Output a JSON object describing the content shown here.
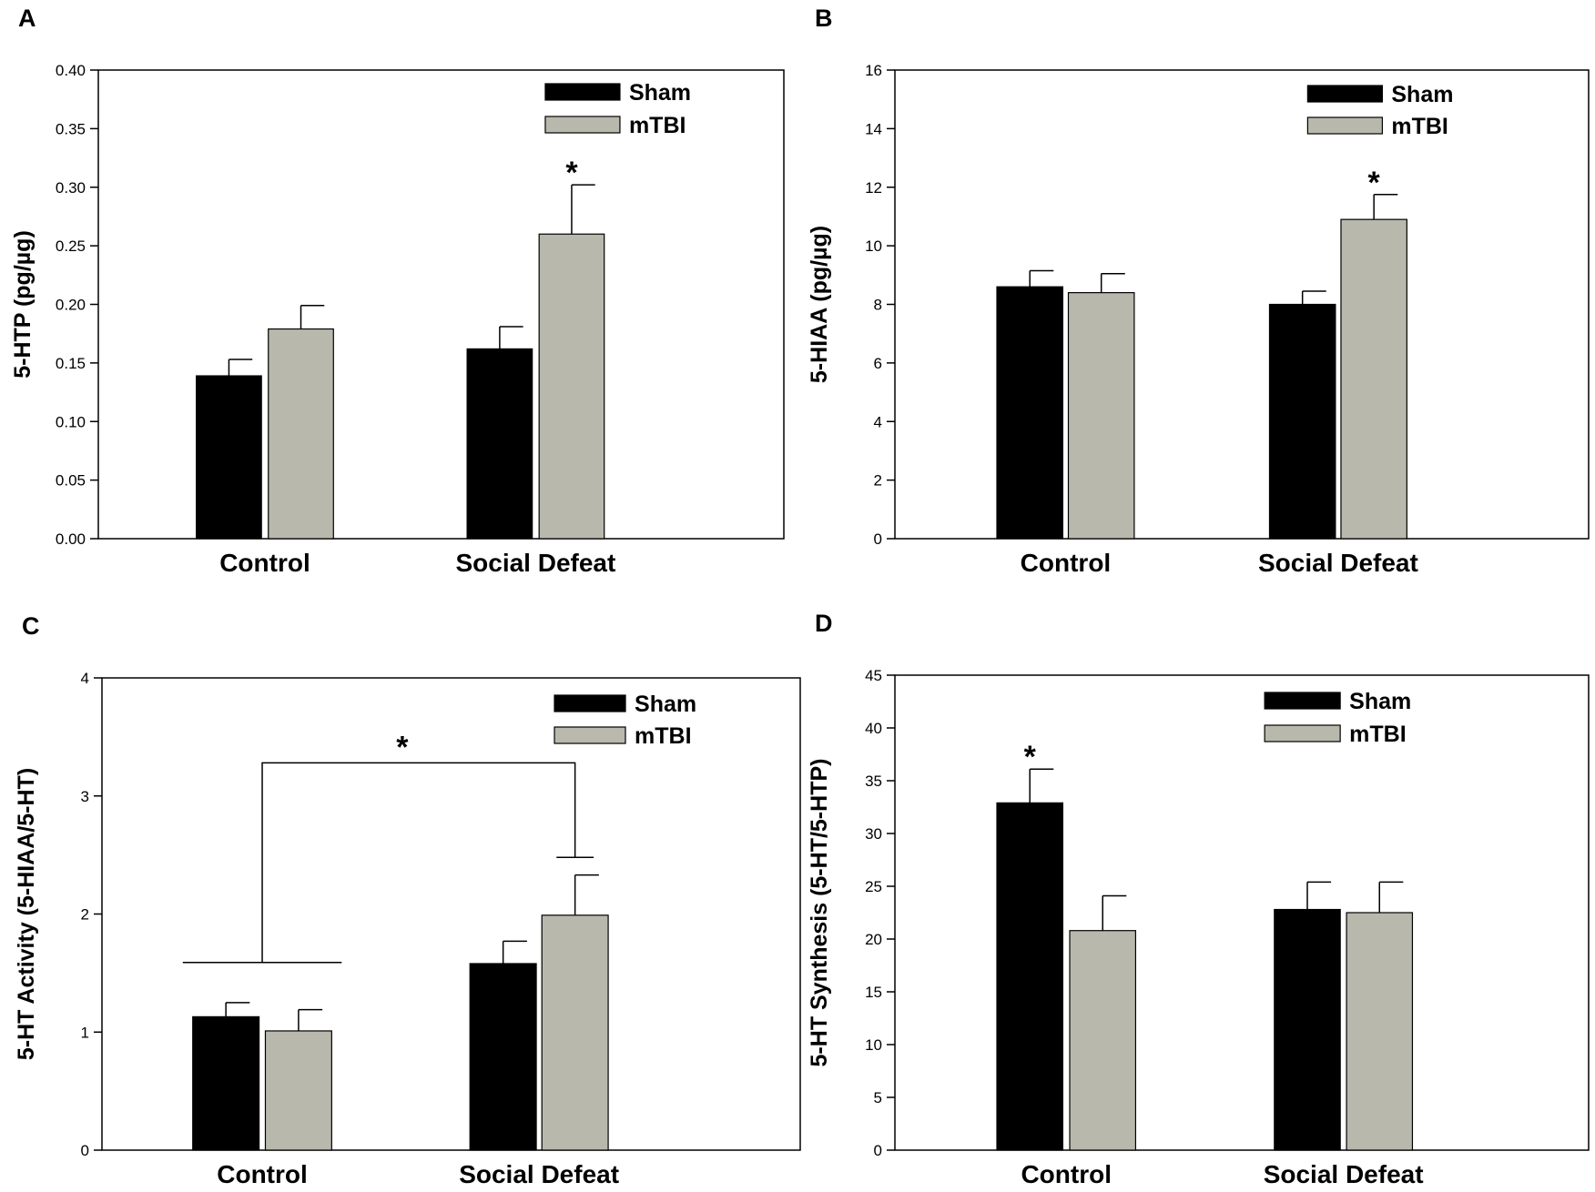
{
  "colors": {
    "sham": "#000000",
    "mtbi": "#b8b8ac",
    "axis": "#000000",
    "background": "#ffffff"
  },
  "chart_data": [
    {
      "panel": "A",
      "type": "bar",
      "ylabel": "5-HTP (pg/µg)",
      "categories": [
        "Control",
        "Social Defeat"
      ],
      "ylim": [
        0,
        0.4
      ],
      "yticks": [
        0,
        0.05,
        0.1,
        0.15,
        0.2,
        0.25,
        0.3,
        0.35,
        0.4
      ],
      "ytick_labels": [
        "0.00",
        "0.05",
        "0.10",
        "0.15",
        "0.20",
        "0.25",
        "0.30",
        "0.35",
        "0.40"
      ],
      "legend": [
        "Sham",
        "mTBI"
      ],
      "series": [
        {
          "name": "Sham",
          "values": [
            0.139,
            0.162
          ],
          "errors": [
            0.014,
            0.019
          ]
        },
        {
          "name": "mTBI",
          "values": [
            0.179,
            0.26
          ],
          "errors": [
            0.02,
            0.042
          ]
        }
      ],
      "annotations": [
        {
          "text": "*",
          "category": 1,
          "series": 1
        }
      ]
    },
    {
      "panel": "B",
      "type": "bar",
      "ylabel": "5-HIAA (pg/µg)",
      "categories": [
        "Control",
        "Social Defeat"
      ],
      "ylim": [
        0,
        16
      ],
      "yticks": [
        0,
        2,
        4,
        6,
        8,
        10,
        12,
        14,
        16
      ],
      "ytick_labels": [
        "0",
        "2",
        "4",
        "6",
        "8",
        "10",
        "12",
        "14",
        "16"
      ],
      "legend": [
        "Sham",
        "mTBI"
      ],
      "series": [
        {
          "name": "Sham",
          "values": [
            8.6,
            8.0
          ],
          "errors": [
            0.55,
            0.45
          ]
        },
        {
          "name": "mTBI",
          "values": [
            8.4,
            10.9
          ],
          "errors": [
            0.65,
            0.85
          ]
        }
      ],
      "annotations": [
        {
          "text": "*",
          "category": 1,
          "series": 1
        }
      ]
    },
    {
      "panel": "C",
      "type": "bar",
      "ylabel": "5-HT Activity (5-HIAA/5-HT)",
      "categories": [
        "Control",
        "Social Defeat"
      ],
      "ylim": [
        0,
        4
      ],
      "yticks": [
        0,
        1,
        2,
        3,
        4
      ],
      "ytick_labels": [
        "0",
        "1",
        "2",
        "3",
        "4"
      ],
      "legend": [
        "Sham",
        "mTBI"
      ],
      "series": [
        {
          "name": "Sham",
          "values": [
            1.13,
            1.58
          ],
          "errors": [
            0.12,
            0.19
          ]
        },
        {
          "name": "mTBI",
          "values": [
            1.01,
            1.99
          ],
          "errors": [
            0.18,
            0.34
          ]
        }
      ],
      "bracket": {
        "text": "*",
        "left_base": 1.59,
        "right_base": 2.48,
        "top": 3.28
      }
    },
    {
      "panel": "D",
      "type": "bar",
      "ylabel": "5-HT Synthesis (5-HT/5-HTP)",
      "categories": [
        "Control",
        "Social Defeat"
      ],
      "ylim": [
        0,
        45
      ],
      "yticks": [
        0,
        5,
        10,
        15,
        20,
        25,
        30,
        35,
        40,
        45
      ],
      "ytick_labels": [
        "0",
        "5",
        "10",
        "15",
        "20",
        "25",
        "30",
        "35",
        "40",
        "45"
      ],
      "legend": [
        "Sham",
        "mTBI"
      ],
      "series": [
        {
          "name": "Sham",
          "values": [
            32.9,
            22.8
          ],
          "errors": [
            3.2,
            2.6
          ]
        },
        {
          "name": "mTBI",
          "values": [
            20.8,
            22.5
          ],
          "errors": [
            3.3,
            2.9
          ]
        }
      ],
      "annotations": [
        {
          "text": "*",
          "category": 0,
          "series": 0
        }
      ]
    }
  ]
}
